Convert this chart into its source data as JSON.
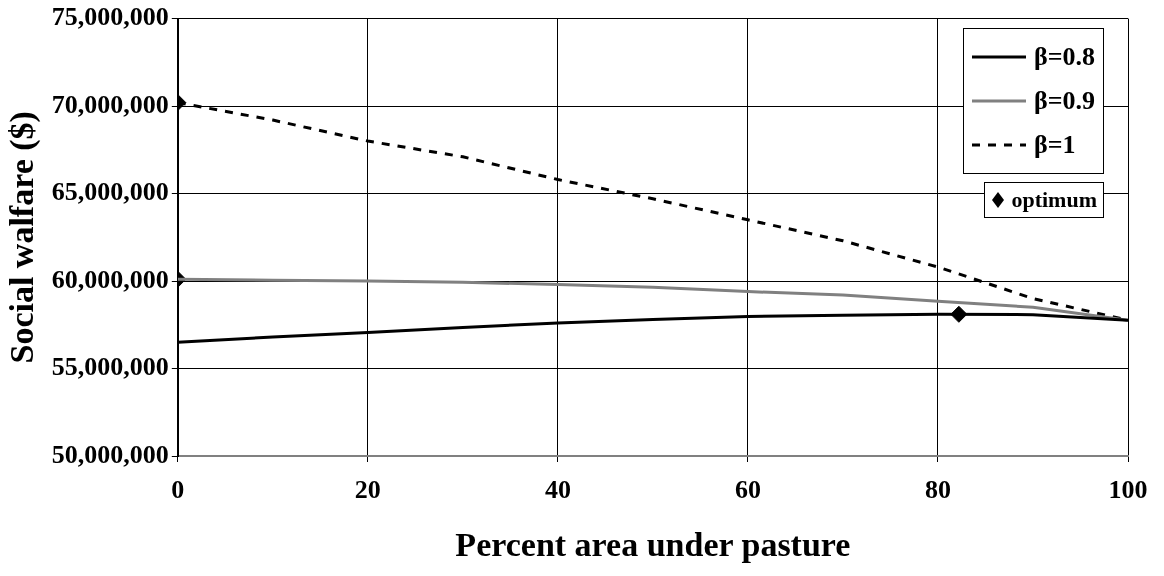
{
  "chart_data": {
    "type": "line",
    "xlabel": "Percent area under pasture",
    "ylabel": "Social walfare ($)",
    "xlim": [
      0,
      100
    ],
    "xticks": [
      0,
      20,
      40,
      60,
      80,
      100
    ],
    "ylim": [
      50000000,
      75000000
    ],
    "yticks": [
      {
        "value": 50000000,
        "label": "50,000,000"
      },
      {
        "value": 55000000,
        "label": "55,000,000"
      },
      {
        "value": 60000000,
        "label": "60,000,000"
      },
      {
        "value": 65000000,
        "label": "65,000,000"
      },
      {
        "value": 70000000,
        "label": "70,000,000"
      },
      {
        "value": 75000000,
        "label": "75,000,000"
      }
    ],
    "grid": true,
    "legend": "top right",
    "series": [
      {
        "name": "β=0.8",
        "color": "#000000",
        "line_style": "solid",
        "marker": "none",
        "x": [
          0,
          10,
          20,
          30,
          40,
          50,
          60,
          70,
          80,
          90,
          100
        ],
        "values": [
          56500000,
          56800000,
          57060000,
          57350000,
          57600000,
          57800000,
          57970000,
          58050000,
          58100000,
          58080000,
          57760000
        ]
      },
      {
        "name": "β=0.9",
        "color": "#808080",
        "line_style": "solid",
        "marker": "none",
        "x": [
          0,
          10,
          20,
          30,
          40,
          50,
          60,
          70,
          80,
          90,
          100
        ],
        "values": [
          60100000,
          60050000,
          60000000,
          59930000,
          59800000,
          59650000,
          59400000,
          59200000,
          58850000,
          58500000,
          57760000
        ]
      },
      {
        "name": "β=1",
        "color": "#000000",
        "line_style": "dashed",
        "marker": "none",
        "x": [
          0,
          10,
          20,
          30,
          40,
          50,
          60,
          70,
          80,
          90,
          100
        ],
        "values": [
          70200000,
          69200000,
          68000000,
          67100000,
          65800000,
          64700000,
          63500000,
          62300000,
          60800000,
          59000000,
          57760000
        ]
      },
      {
        "name": "optimum",
        "type": "scatter",
        "color": "#000000",
        "marker": "diamond",
        "x": [
          0,
          0,
          82.2
        ],
        "values": [
          70200000,
          60100000,
          58100000
        ]
      }
    ]
  }
}
